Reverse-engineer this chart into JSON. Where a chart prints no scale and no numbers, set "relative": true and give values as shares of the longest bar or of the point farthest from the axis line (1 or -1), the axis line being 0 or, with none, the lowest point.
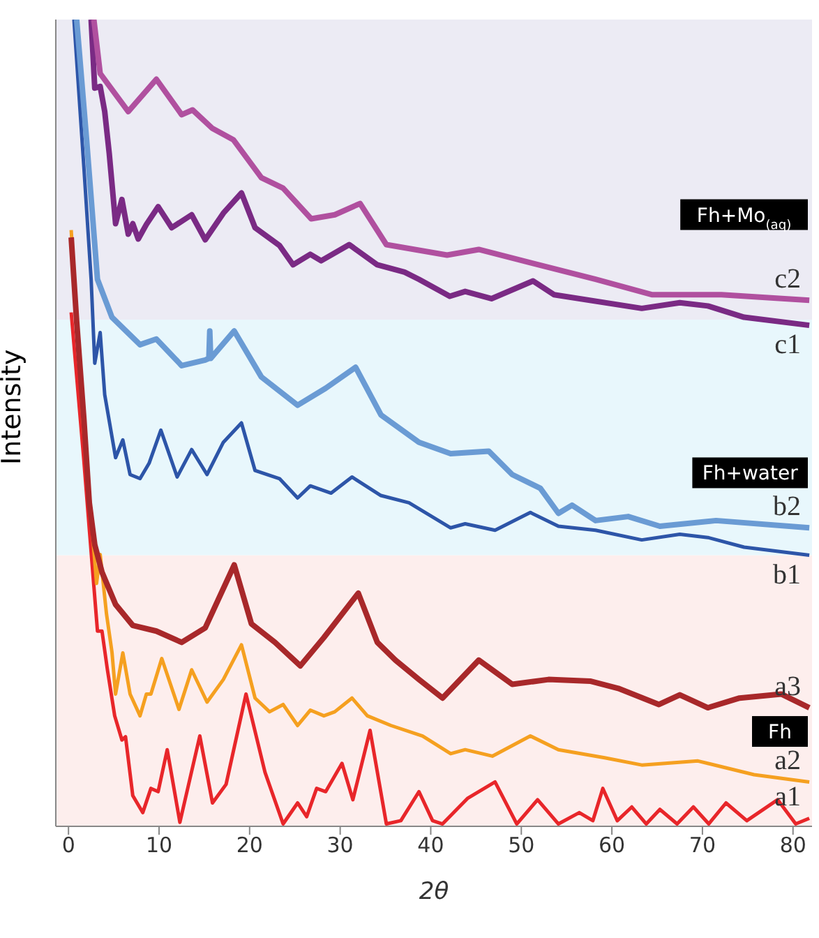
{
  "chart_data": {
    "type": "line",
    "xlabel": "2θ",
    "ylabel": "Intensity",
    "relative": true,
    "xlim": [
      -1.4,
      82.1
    ],
    "xticks": [
      0,
      10,
      20,
      30,
      40,
      50,
      60,
      70,
      80
    ],
    "grid": false,
    "legend": false,
    "marker": "none",
    "line_style": "solid",
    "bands": [
      {
        "axis": "y",
        "from": 0,
        "to": 0.336,
        "label": "Fh",
        "color": "#fdeeed"
      },
      {
        "axis": "y",
        "from": 0.336,
        "to": 0.628,
        "label": "Fh+water",
        "color": "#e8f7fc"
      },
      {
        "axis": "y",
        "from": 0.628,
        "to": 1,
        "label": "Fh+Mo$_{(aq)}$",
        "color": "#ecebf4"
      }
    ],
    "series": [
      {
        "name": "a1",
        "color": "#e8262a",
        "x": [
          0.3,
          1.7,
          2.8,
          3.2,
          3.7,
          4.3,
          5.1,
          5.9,
          6.3,
          7.1,
          8.2,
          9.1,
          9.9,
          10.9,
          12.3,
          14.5,
          15.9,
          17.4,
          19.6,
          21.7,
          23.7,
          25.3,
          26.3,
          27.4,
          28.4,
          30.2,
          31.4,
          33.3,
          35.1,
          36.7,
          38.7,
          40.2,
          41.3,
          44.1,
          47.1,
          49.5,
          51.8,
          54.1,
          56.4,
          57.9,
          59.0,
          60.6,
          62.2,
          63.8,
          65.3,
          67.2,
          69.0,
          70.7,
          72.6,
          74.9,
          78.3,
          80.3,
          81.8
        ],
        "values": [
          0.637,
          0.453,
          0.298,
          0.242,
          0.242,
          0.194,
          0.137,
          0.107,
          0.111,
          0.038,
          0.017,
          0.047,
          0.043,
          0.095,
          0.005,
          0.112,
          0.029,
          0.052,
          0.164,
          0.067,
          0.003,
          0.029,
          0.012,
          0.047,
          0.043,
          0.078,
          0.033,
          0.119,
          0.003,
          0.007,
          0.043,
          0.007,
          0.003,
          0.035,
          0.055,
          0.003,
          0.033,
          0.003,
          0.017,
          0.007,
          0.047,
          0.007,
          0.024,
          0.003,
          0.021,
          0.003,
          0.024,
          0.003,
          0.029,
          0.007,
          0.033,
          0.003,
          0.01
        ]
      },
      {
        "name": "a2",
        "color": "#f5a020",
        "x": [
          0.3,
          0.9,
          1.7,
          2.5,
          3.1,
          3.5,
          4.2,
          4.8,
          5.2,
          6.0,
          6.8,
          7.9,
          8.6,
          9.1,
          10.3,
          12.2,
          13.6,
          15.3,
          17.1,
          19.1,
          20.6,
          22.2,
          23.7,
          25.3,
          26.7,
          28.2,
          29.4,
          31.3,
          33.0,
          35.6,
          39.1,
          42.2,
          43.8,
          46.8,
          51.0,
          54.1,
          59.2,
          63.3,
          69.5,
          75.7,
          81.8
        ],
        "values": [
          0.739,
          0.626,
          0.488,
          0.384,
          0.301,
          0.337,
          0.263,
          0.216,
          0.164,
          0.215,
          0.164,
          0.137,
          0.164,
          0.164,
          0.208,
          0.145,
          0.194,
          0.154,
          0.182,
          0.225,
          0.159,
          0.142,
          0.151,
          0.125,
          0.144,
          0.137,
          0.142,
          0.159,
          0.137,
          0.125,
          0.112,
          0.09,
          0.095,
          0.087,
          0.112,
          0.095,
          0.085,
          0.076,
          0.081,
          0.064,
          0.055
        ]
      },
      {
        "name": "a3",
        "color": "#a8282a",
        "x": [
          0.3,
          0.9,
          1.7,
          2.3,
          2.9,
          3.7,
          5.2,
          7.1,
          9.7,
          12.5,
          15.1,
          18.3,
          20.2,
          22.8,
          25.6,
          28.2,
          32.0,
          34.1,
          36.1,
          38.7,
          41.3,
          45.3,
          49.0,
          53.0,
          57.6,
          60.7,
          65.2,
          67.5,
          70.6,
          74.1,
          78.7,
          81.8
        ],
        "values": [
          0.73,
          0.626,
          0.505,
          0.401,
          0.349,
          0.315,
          0.275,
          0.249,
          0.242,
          0.228,
          0.246,
          0.324,
          0.251,
          0.228,
          0.199,
          0.234,
          0.289,
          0.228,
          0.206,
          0.182,
          0.159,
          0.206,
          0.176,
          0.182,
          0.18,
          0.171,
          0.151,
          0.163,
          0.147,
          0.159,
          0.164,
          0.147
        ]
      },
      {
        "name": "b1",
        "color": "#2d55a8",
        "x": [
          0.6,
          1.7,
          2.5,
          2.9,
          3.5,
          4.0,
          5.2,
          6.0,
          6.8,
          7.9,
          8.9,
          10.2,
          12.0,
          13.6,
          15.3,
          17.1,
          19.1,
          20.6,
          23.3,
          25.3,
          26.7,
          29.0,
          31.3,
          34.5,
          37.6,
          42.2,
          43.8,
          47.1,
          51.0,
          54.1,
          58.2,
          63.3,
          67.5,
          70.6,
          74.6,
          81.8
        ],
        "values": [
          1.0,
          0.817,
          0.678,
          0.574,
          0.612,
          0.535,
          0.457,
          0.479,
          0.436,
          0.431,
          0.45,
          0.491,
          0.433,
          0.467,
          0.436,
          0.476,
          0.5,
          0.441,
          0.431,
          0.407,
          0.422,
          0.413,
          0.433,
          0.41,
          0.401,
          0.37,
          0.375,
          0.367,
          0.389,
          0.372,
          0.367,
          0.355,
          0.362,
          0.358,
          0.346,
          0.336
        ]
      },
      {
        "name": "b2",
        "color": "#6a9bd4",
        "x": [
          0.9,
          2.0,
          3.2,
          4.8,
          7.9,
          9.7,
          12.5,
          15.1,
          15.5,
          15.6,
          15.7,
          18.3,
          21.3,
          25.3,
          28.4,
          31.7,
          34.5,
          38.7,
          42.2,
          46.4,
          49.0,
          52.1,
          54.1,
          55.6,
          58.2,
          61.8,
          65.3,
          71.5,
          81.8
        ],
        "values": [
          1.0,
          0.851,
          0.678,
          0.631,
          0.597,
          0.604,
          0.571,
          0.578,
          0.58,
          0.614,
          0.58,
          0.614,
          0.557,
          0.522,
          0.543,
          0.569,
          0.51,
          0.476,
          0.462,
          0.465,
          0.436,
          0.419,
          0.388,
          0.398,
          0.379,
          0.384,
          0.372,
          0.379,
          0.37
        ]
      },
      {
        "name": "c1",
        "color": "#7a2a84",
        "x": [
          2.5,
          2.9,
          3.5,
          4.0,
          4.5,
          5.2,
          5.9,
          6.6,
          7.1,
          7.7,
          8.6,
          9.9,
          11.4,
          13.6,
          15.1,
          17.1,
          19.1,
          20.6,
          23.3,
          24.8,
          26.7,
          27.9,
          31.0,
          34.1,
          37.1,
          38.7,
          42.1,
          43.8,
          46.7,
          51.3,
          53.6,
          63.3,
          67.5,
          70.6,
          74.6,
          81.8
        ],
        "values": [
          1.0,
          0.915,
          0.917,
          0.886,
          0.834,
          0.747,
          0.777,
          0.734,
          0.747,
          0.728,
          0.746,
          0.768,
          0.742,
          0.758,
          0.727,
          0.76,
          0.785,
          0.742,
          0.72,
          0.696,
          0.709,
          0.701,
          0.721,
          0.696,
          0.687,
          0.678,
          0.657,
          0.663,
          0.654,
          0.676,
          0.659,
          0.642,
          0.649,
          0.645,
          0.631,
          0.621
        ]
      },
      {
        "name": "c2",
        "color": "#b0509f",
        "x": [
          2.8,
          3.5,
          6.6,
          9.7,
          12.5,
          13.7,
          15.9,
          18.2,
          21.3,
          23.7,
          26.8,
          29.4,
          32.2,
          35.1,
          41.8,
          45.3,
          58.2,
          64.4,
          72.1,
          81.8
        ],
        "values": [
          1.0,
          0.933,
          0.886,
          0.926,
          0.882,
          0.888,
          0.865,
          0.851,
          0.804,
          0.791,
          0.753,
          0.758,
          0.772,
          0.721,
          0.708,
          0.715,
          0.678,
          0.659,
          0.659,
          0.652
        ]
      }
    ]
  }
}
